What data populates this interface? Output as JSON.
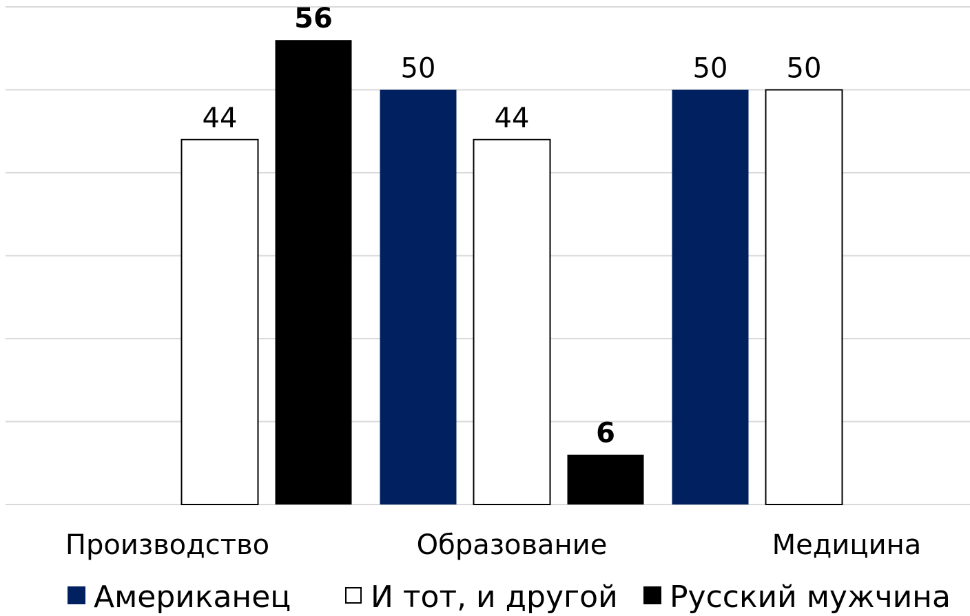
{
  "chart_data": {
    "type": "bar",
    "categories": [
      "Производство",
      "Образование",
      "Медицина"
    ],
    "series": [
      {
        "name": "Американец",
        "values": [
          0,
          50,
          50
        ],
        "color": "#002060",
        "label_bold": false
      },
      {
        "name": "И тот, и другой",
        "values": [
          44,
          44,
          50
        ],
        "color": "#ffffff",
        "stroke": "#000000",
        "label_bold": false
      },
      {
        "name": "Русский мужчина",
        "values": [
          56,
          6,
          0
        ],
        "color": "#000000",
        "label_bold": true
      }
    ],
    "ylim": [
      0,
      60
    ],
    "grid": true,
    "legend_position": "bottom"
  }
}
